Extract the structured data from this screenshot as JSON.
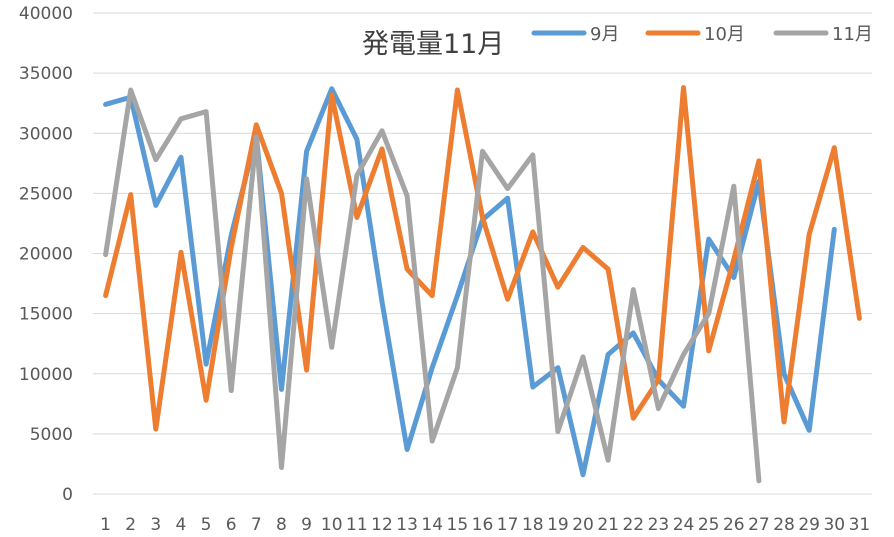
{
  "chart_data": {
    "type": "line",
    "title": "発電量11月",
    "xlabel": "",
    "ylabel": "",
    "ylim": [
      0,
      40000
    ],
    "yticks": [
      0,
      5000,
      10000,
      15000,
      20000,
      25000,
      30000,
      35000,
      40000
    ],
    "ytick_labels": [
      "0",
      "5000",
      "10000",
      "15000",
      "20000",
      "25000",
      "30000",
      "35000",
      "40000"
    ],
    "categories": [
      "1",
      "2",
      "3",
      "4",
      "5",
      "6",
      "7",
      "8",
      "9",
      "10",
      "11",
      "12",
      "13",
      "14",
      "15",
      "16",
      "17",
      "18",
      "19",
      "20",
      "21",
      "22",
      "23",
      "24",
      "25",
      "26",
      "27",
      "28",
      "29",
      "30",
      "31"
    ],
    "grid": true,
    "legend_position": "top-right",
    "series": [
      {
        "name": "9月",
        "color": "#5B9BD5",
        "values": [
          32400,
          33000,
          24000,
          28000,
          10800,
          21500,
          29800,
          8700,
          28500,
          33700,
          29500,
          16000,
          3700,
          10500,
          16500,
          22800,
          24600,
          8900,
          10500,
          1600,
          11600,
          13400,
          9500,
          7300,
          21200,
          18000,
          26000,
          10000,
          5300,
          22000,
          null
        ]
      },
      {
        "name": "10月",
        "color": "#ED7D31",
        "values": [
          16500,
          24900,
          5400,
          20100,
          7800,
          20500,
          30700,
          25000,
          10300,
          33200,
          23000,
          28700,
          18700,
          16500,
          33600,
          23000,
          16200,
          21800,
          17200,
          20500,
          18700,
          6300,
          9500,
          33800,
          11900,
          19500,
          27700,
          6000,
          21600,
          28800,
          14600
        ]
      },
      {
        "name": "11月",
        "color": "#A5A5A5",
        "values": [
          19900,
          33600,
          27800,
          31200,
          31800,
          8600,
          29700,
          2200,
          26200,
          12200,
          26500,
          30200,
          24800,
          4400,
          10500,
          28500,
          25400,
          28200,
          5200,
          11400,
          2800,
          17000,
          7100,
          11600,
          15000,
          25600,
          1100,
          null,
          null,
          null,
          null
        ]
      }
    ]
  }
}
